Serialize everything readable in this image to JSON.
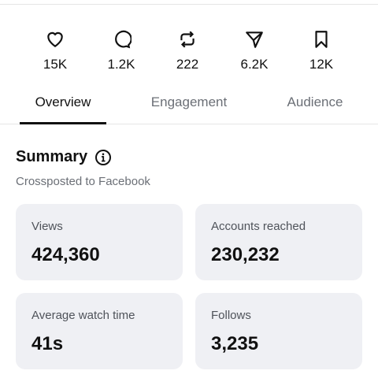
{
  "stats": [
    {
      "label": "15K"
    },
    {
      "label": "1.2K"
    },
    {
      "label": "222"
    },
    {
      "label": "6.2K"
    },
    {
      "label": "12K"
    }
  ],
  "tabs": [
    "Overview",
    "Engagement",
    "Audience"
  ],
  "summary": {
    "title": "Summary",
    "subtitle": "Crossposted to Facebook"
  },
  "cards": [
    {
      "label": "Views",
      "value": "424,360"
    },
    {
      "label": "Accounts reached",
      "value": "230,232"
    },
    {
      "label": "Average watch time",
      "value": "41s"
    },
    {
      "label": "Follows",
      "value": "3,235"
    }
  ]
}
